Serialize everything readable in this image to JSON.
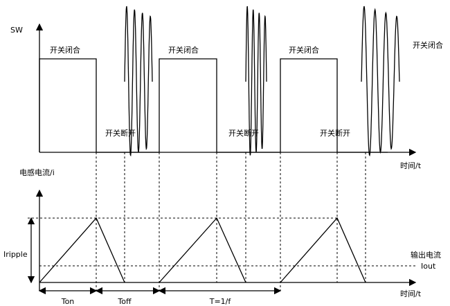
{
  "top_plot": {
    "y_label": "SW",
    "x_label": "时间/t",
    "on_labels": [
      "开关闭合",
      "开关闭合",
      "开关闭合",
      "开关闭合"
    ],
    "off_labels": [
      "开关断开",
      "开关断开",
      "开关断开"
    ]
  },
  "bottom_plot": {
    "y_label": "电感电流/i",
    "x_label": "时间/t",
    "ripple_label": "Iripple",
    "output_label": "输出电流",
    "output_symbol": "Iout",
    "intervals": [
      "Ton",
      "Toff",
      "T=1/f"
    ]
  }
}
